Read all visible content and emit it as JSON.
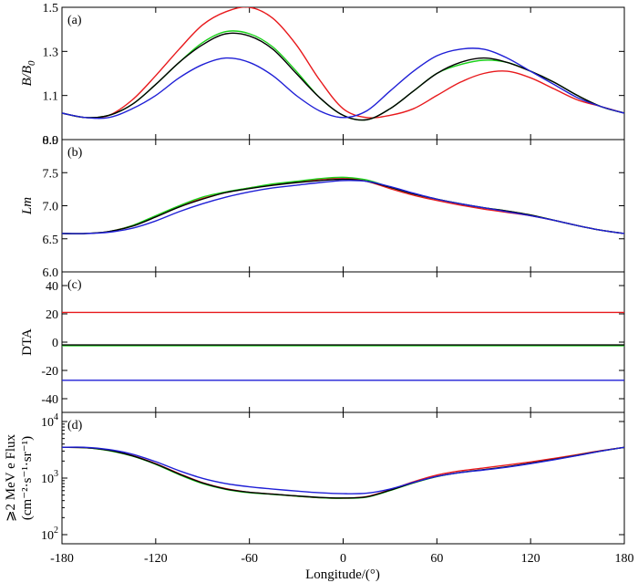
{
  "chart_data": {
    "type": "line",
    "shared_x": {
      "label": "Longitude/(°)",
      "xlim": [
        -180,
        180
      ],
      "ticks": [
        -180,
        -120,
        -60,
        0,
        60,
        120,
        180
      ],
      "tick_labels": [
        "-180",
        "-120",
        "-60",
        "0",
        "60",
        "120",
        "180"
      ]
    },
    "series_colors": {
      "red": "#e8191c",
      "green": "#19d119",
      "black": "#000000",
      "blue": "#1f1fd6"
    },
    "panels": [
      {
        "tag": "(a)",
        "ylabel": "B/B",
        "ylabel_sub": "0",
        "ylim": [
          0.9,
          1.5
        ],
        "ticks": [
          0.9,
          1.1,
          1.3,
          1.5
        ],
        "tick_labels": [
          "0.9",
          "1.1",
          "1.3",
          "1.5"
        ],
        "x": [
          -180,
          -165,
          -150,
          -135,
          -120,
          -105,
          -90,
          -75,
          -60,
          -45,
          -30,
          -15,
          0,
          15,
          30,
          45,
          60,
          75,
          90,
          105,
          120,
          135,
          150,
          165,
          180
        ],
        "series": [
          {
            "name": "red",
            "values": [
              1.02,
              1.0,
              1.01,
              1.08,
              1.19,
              1.31,
              1.42,
              1.48,
              1.5,
              1.45,
              1.33,
              1.17,
              1.04,
              1.0,
              1.01,
              1.04,
              1.1,
              1.16,
              1.2,
              1.21,
              1.18,
              1.13,
              1.08,
              1.05,
              1.02
            ]
          },
          {
            "name": "green",
            "values": [
              1.02,
              1.0,
              1.01,
              1.06,
              1.15,
              1.25,
              1.34,
              1.39,
              1.38,
              1.32,
              1.21,
              1.09,
              1.01,
              0.99,
              1.04,
              1.12,
              1.2,
              1.24,
              1.26,
              1.25,
              1.21,
              1.16,
              1.1,
              1.05,
              1.02
            ]
          },
          {
            "name": "black",
            "values": [
              1.02,
              1.0,
              1.01,
              1.06,
              1.15,
              1.25,
              1.33,
              1.38,
              1.37,
              1.31,
              1.2,
              1.09,
              1.01,
              0.99,
              1.04,
              1.12,
              1.2,
              1.25,
              1.27,
              1.25,
              1.21,
              1.16,
              1.1,
              1.05,
              1.02
            ]
          },
          {
            "name": "blue",
            "values": [
              1.02,
              1.0,
              1.0,
              1.04,
              1.1,
              1.18,
              1.24,
              1.27,
              1.25,
              1.19,
              1.1,
              1.03,
              1.0,
              1.03,
              1.12,
              1.21,
              1.28,
              1.31,
              1.31,
              1.27,
              1.21,
              1.15,
              1.09,
              1.05,
              1.02
            ]
          }
        ]
      },
      {
        "tag": "(b)",
        "ylabel": "Lm",
        "ylabel_sub": "",
        "ylim": [
          6.0,
          8.0
        ],
        "ticks": [
          6.0,
          6.5,
          7.0,
          7.5,
          8.0
        ],
        "tick_labels": [
          "6.0",
          "6.5",
          "7.0",
          "7.5",
          "8.0"
        ],
        "x": [
          -180,
          -165,
          -150,
          -135,
          -120,
          -105,
          -90,
          -75,
          -60,
          -45,
          -30,
          -15,
          0,
          15,
          30,
          45,
          60,
          75,
          90,
          105,
          120,
          135,
          150,
          165,
          180
        ],
        "series": [
          {
            "name": "red",
            "values": [
              6.58,
              6.58,
              6.61,
              6.7,
              6.84,
              6.99,
              7.11,
              7.2,
              7.27,
              7.32,
              7.36,
              7.4,
              7.42,
              7.37,
              7.26,
              7.16,
              7.08,
              7.01,
              6.95,
              6.9,
              6.85,
              6.78,
              6.7,
              6.63,
              6.58
            ]
          },
          {
            "name": "green",
            "values": [
              6.58,
              6.58,
              6.61,
              6.7,
              6.85,
              7.0,
              7.13,
              7.21,
              7.27,
              7.33,
              7.37,
              7.41,
              7.43,
              7.39,
              7.28,
              7.18,
              7.1,
              7.03,
              6.97,
              6.92,
              6.86,
              6.78,
              6.7,
              6.63,
              6.58
            ]
          },
          {
            "name": "black",
            "values": [
              6.58,
              6.58,
              6.61,
              6.69,
              6.83,
              6.98,
              7.1,
              7.2,
              7.26,
              7.31,
              7.35,
              7.38,
              7.4,
              7.37,
              7.28,
              7.18,
              7.1,
              7.03,
              6.97,
              6.92,
              6.86,
              6.78,
              6.7,
              6.63,
              6.58
            ]
          },
          {
            "name": "blue",
            "values": [
              6.58,
              6.58,
              6.6,
              6.66,
              6.77,
              6.91,
              7.03,
              7.13,
              7.21,
              7.27,
              7.31,
              7.35,
              7.38,
              7.37,
              7.29,
              7.19,
              7.1,
              7.03,
              6.97,
              6.91,
              6.85,
              6.78,
              6.7,
              6.63,
              6.58
            ]
          }
        ]
      },
      {
        "tag": "(c)",
        "ylabel": "DTA",
        "ylabel_sub": "",
        "ylim": [
          -40,
          40
        ],
        "ticks": [
          -40,
          -20,
          0,
          20,
          40
        ],
        "tick_labels": [
          "-40",
          "-20",
          "0",
          "20",
          "40"
        ],
        "x": [
          -180,
          180
        ],
        "series": [
          {
            "name": "red",
            "values": [
              21,
              21
            ]
          },
          {
            "name": "green",
            "values": [
              -2.5,
              -2.5
            ]
          },
          {
            "name": "black",
            "values": [
              -2.0,
              -2.0
            ]
          },
          {
            "name": "blue",
            "values": [
              -27,
              -27
            ]
          }
        ]
      },
      {
        "tag": "(d)",
        "ylabel": "⩾2 MeV e Flux",
        "ylabel2": "(cm⁻²·s⁻¹·sr⁻¹)",
        "ylabel_sub": "",
        "yscale": "log",
        "ylim": [
          100,
          10000
        ],
        "ticks": [
          100,
          1000,
          10000
        ],
        "tick_labels": [
          "10",
          "10",
          "10"
        ],
        "tick_exps": [
          "2",
          "3",
          "4"
        ],
        "x": [
          -180,
          -165,
          -150,
          -135,
          -120,
          -105,
          -90,
          -75,
          -60,
          -45,
          -30,
          -15,
          0,
          15,
          30,
          45,
          60,
          75,
          90,
          105,
          120,
          135,
          150,
          165,
          180
        ],
        "series": [
          {
            "name": "red",
            "values": [
              3500,
              3450,
              3100,
              2500,
              1800,
              1200,
              830,
              650,
              560,
              520,
              480,
              450,
              440,
              470,
              620,
              860,
              1130,
              1340,
              1510,
              1700,
              1930,
              2230,
              2600,
              3050,
              3500
            ]
          },
          {
            "name": "green",
            "values": [
              3500,
              3450,
              3050,
              2450,
              1750,
              1150,
              800,
              630,
              550,
              515,
              480,
              450,
              440,
              460,
              600,
              820,
              1060,
              1250,
              1400,
              1580,
              1820,
              2130,
              2520,
              3000,
              3500
            ]
          },
          {
            "name": "black",
            "values": [
              3500,
              3450,
              3100,
              2480,
              1780,
              1180,
              820,
              640,
              560,
              520,
              485,
              455,
              445,
              465,
              610,
              830,
              1070,
              1260,
              1410,
              1590,
              1830,
              2140,
              2530,
              3010,
              3500
            ]
          },
          {
            "name": "blue",
            "values": [
              3500,
              3500,
              3200,
              2650,
              1950,
              1350,
              990,
              800,
              700,
              640,
              590,
              550,
              530,
              540,
              640,
              840,
              1070,
              1250,
              1390,
              1560,
              1800,
              2110,
              2500,
              3000,
              3500
            ]
          }
        ]
      }
    ]
  }
}
